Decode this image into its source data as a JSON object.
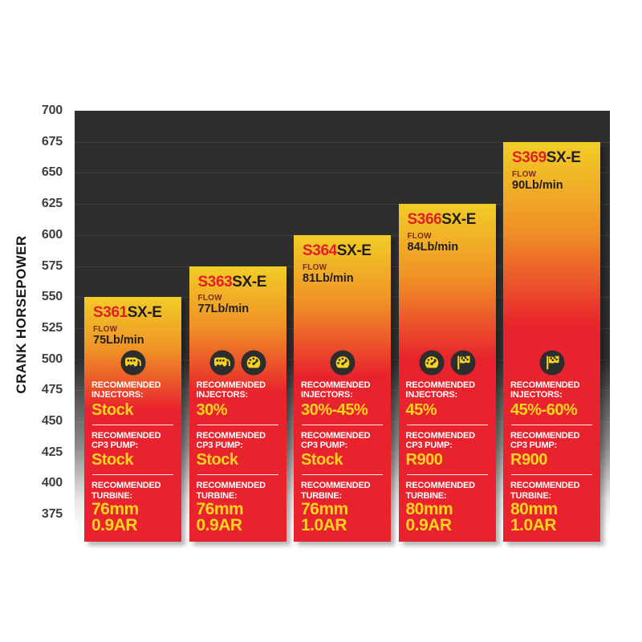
{
  "y_axis": {
    "title": "CRANK HORSEPOWER",
    "tick_values": [
      700,
      675,
      650,
      625,
      600,
      575,
      550,
      525,
      500,
      475,
      450,
      425,
      400,
      375
    ]
  },
  "labels": {
    "flow": "FLOW",
    "injectors": "RECOMMENDED INJECTORS:",
    "cp3": "RECOMMENDED CP3 PUMP:",
    "turbine": "RECOMMENDED TURBINE:"
  },
  "colors": {
    "bar_top": "#f1cd26",
    "bar_mid": "#ef9126",
    "bar_bottom": "#e8232d",
    "model_number": "#e31e26",
    "model_suffix": "#221e1f",
    "flow_label": "#7b2d17",
    "spec_label": "#ffffff",
    "spec_value": "#ffd41e",
    "plot_bg": "#2f2e2e",
    "icon_circle": "#2e2d2e",
    "icon_glyph": "#f5d31f",
    "tick_text": "#403e3f"
  },
  "chart_data": {
    "type": "bar",
    "title": "",
    "xlabel": "",
    "ylabel": "CRANK HORSEPOWER",
    "ylim": [
      375,
      700
    ],
    "ytick_step": 25,
    "grid": true,
    "legend": "none",
    "categories": [
      "S361SX-E",
      "S363SX-E",
      "S364SX-E",
      "S366SX-E",
      "S369SX-E"
    ],
    "values": [
      550,
      575,
      600,
      625,
      675
    ],
    "bars": [
      {
        "model_number": "S361",
        "model_suffix": "SX-E",
        "flow": "75Lb/min",
        "icons": [
          "towing"
        ],
        "injectors": "Stock",
        "cp3_pump": "Stock",
        "turbine": [
          "76mm",
          "0.9AR"
        ],
        "crank_hp": 550
      },
      {
        "model_number": "S363",
        "model_suffix": "SX-E",
        "flow": "77Lb/min",
        "icons": [
          "towing",
          "gauge"
        ],
        "injectors": "30%",
        "cp3_pump": "Stock",
        "turbine": [
          "76mm",
          "0.9AR"
        ],
        "crank_hp": 575
      },
      {
        "model_number": "S364",
        "model_suffix": "SX-E",
        "flow": "81Lb/min",
        "icons": [
          "gauge"
        ],
        "injectors": "30%-45%",
        "cp3_pump": "Stock",
        "turbine": [
          "76mm",
          "1.0AR"
        ],
        "crank_hp": 600
      },
      {
        "model_number": "S366",
        "model_suffix": "SX-E",
        "flow": "84Lb/min",
        "icons": [
          "gauge",
          "race-flag"
        ],
        "injectors": "45%",
        "cp3_pump": "R900",
        "turbine": [
          "80mm",
          "0.9AR"
        ],
        "crank_hp": 625
      },
      {
        "model_number": "S369",
        "model_suffix": "SX-E",
        "flow": "90Lb/min",
        "icons": [
          "race-flag"
        ],
        "injectors": "45%-60%",
        "cp3_pump": "R900",
        "turbine": [
          "80mm",
          "1.0AR"
        ],
        "crank_hp": 675
      }
    ]
  }
}
